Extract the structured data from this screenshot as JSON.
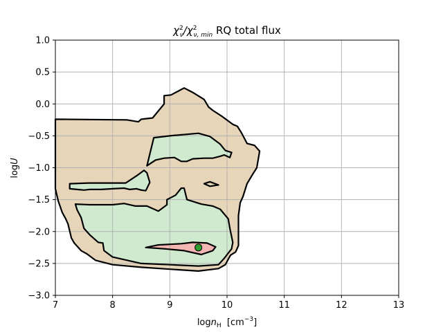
{
  "chart_data": {
    "type": "contour",
    "title_parts": [
      "χ",
      "2",
      "ν",
      "/χ",
      "2",
      "ν, min",
      " RQ total flux"
    ],
    "xlabel_parts": [
      "log",
      "n",
      "H",
      "  [cm",
      "−3",
      "]"
    ],
    "ylabel_parts": [
      "log",
      "U"
    ],
    "xlim": [
      7,
      13
    ],
    "ylim": [
      -3.0,
      1.0
    ],
    "xticks": [
      7,
      8,
      9,
      10,
      11,
      12,
      13
    ],
    "xtick_labels": [
      "7",
      "8",
      "9",
      "10",
      "11",
      "12",
      "13"
    ],
    "yticks": [
      1.0,
      0.5,
      0.0,
      -0.5,
      -1.0,
      -1.5,
      -2.0,
      -2.5,
      -3.0
    ],
    "ytick_labels": [
      "1.0",
      "0.5",
      "0.0",
      "−0.5",
      "−1.0",
      "−1.5",
      "−2.0",
      "−2.5",
      "−3.0"
    ],
    "grid": true,
    "colors": {
      "outer": "#e6d5b8",
      "middle": "#d0ead0",
      "inner": "#f4b6b2",
      "outline": "#000000",
      "minimum_marker": "#2e9e2e",
      "grid": "#b0b0b0"
    },
    "regions": [
      {
        "level": "outer",
        "points": [
          [
            7.0,
            -0.24
          ],
          [
            8.25,
            -0.25
          ],
          [
            8.45,
            -0.28
          ],
          [
            8.5,
            -0.24
          ],
          [
            8.7,
            -0.22
          ],
          [
            8.9,
            0.0
          ],
          [
            8.9,
            0.13
          ],
          [
            9.02,
            0.14
          ],
          [
            9.25,
            0.25
          ],
          [
            9.4,
            0.18
          ],
          [
            9.6,
            0.07
          ],
          [
            9.68,
            -0.05
          ],
          [
            9.75,
            -0.1
          ],
          [
            9.92,
            -0.2
          ],
          [
            10.1,
            -0.32
          ],
          [
            10.18,
            -0.35
          ],
          [
            10.25,
            -0.45
          ],
          [
            10.35,
            -0.62
          ],
          [
            10.48,
            -0.65
          ],
          [
            10.57,
            -0.74
          ],
          [
            10.52,
            -1.0
          ],
          [
            10.45,
            -1.1
          ],
          [
            10.35,
            -1.25
          ],
          [
            10.28,
            -1.45
          ],
          [
            10.23,
            -1.55
          ],
          [
            10.2,
            -1.75
          ],
          [
            10.2,
            -2.22
          ],
          [
            10.15,
            -2.32
          ],
          [
            10.06,
            -2.37
          ],
          [
            9.97,
            -2.52
          ],
          [
            9.85,
            -2.58
          ],
          [
            9.5,
            -2.62
          ],
          [
            9.0,
            -2.59
          ],
          [
            8.5,
            -2.56
          ],
          [
            8.0,
            -2.52
          ],
          [
            7.7,
            -2.45
          ],
          [
            7.55,
            -2.35
          ],
          [
            7.45,
            -2.3
          ],
          [
            7.33,
            -2.18
          ],
          [
            7.28,
            -2.1
          ],
          [
            7.22,
            -1.88
          ],
          [
            7.18,
            -1.8
          ],
          [
            7.12,
            -1.7
          ],
          [
            7.05,
            -1.52
          ],
          [
            7.0,
            -1.33
          ]
        ]
      },
      {
        "level": "middle",
        "points": [
          [
            8.72,
            -0.53
          ],
          [
            9.0,
            -0.5
          ],
          [
            9.5,
            -0.46
          ],
          [
            9.7,
            -0.51
          ],
          [
            9.88,
            -0.63
          ],
          [
            9.97,
            -0.73
          ],
          [
            10.08,
            -0.76
          ],
          [
            10.05,
            -0.84
          ],
          [
            9.95,
            -0.8
          ],
          [
            9.88,
            -0.82
          ],
          [
            9.75,
            -0.85
          ],
          [
            9.6,
            -0.85
          ],
          [
            9.4,
            -0.86
          ],
          [
            9.3,
            -0.9
          ],
          [
            9.2,
            -0.9
          ],
          [
            9.08,
            -0.84
          ],
          [
            8.9,
            -0.85
          ],
          [
            8.75,
            -0.88
          ],
          [
            8.6,
            -0.97
          ]
        ]
      },
      {
        "level": "middle",
        "points": [
          [
            7.25,
            -1.25
          ],
          [
            7.6,
            -1.24
          ],
          [
            7.9,
            -1.24
          ],
          [
            8.23,
            -1.24
          ],
          [
            8.43,
            -1.12
          ],
          [
            8.55,
            -1.04
          ],
          [
            8.6,
            -1.08
          ],
          [
            8.65,
            -1.23
          ],
          [
            8.58,
            -1.36
          ],
          [
            8.5,
            -1.35
          ],
          [
            8.42,
            -1.33
          ],
          [
            8.3,
            -1.34
          ],
          [
            8.2,
            -1.32
          ],
          [
            8.0,
            -1.33
          ],
          [
            7.8,
            -1.34
          ],
          [
            7.6,
            -1.34
          ],
          [
            7.5,
            -1.35
          ],
          [
            7.38,
            -1.34
          ],
          [
            7.25,
            -1.33
          ]
        ]
      },
      {
        "level": "middle",
        "points": [
          [
            7.35,
            -1.57
          ],
          [
            7.6,
            -1.58
          ],
          [
            8.0,
            -1.58
          ],
          [
            8.2,
            -1.56
          ],
          [
            8.4,
            -1.6
          ],
          [
            8.6,
            -1.6
          ],
          [
            8.8,
            -1.68
          ],
          [
            8.95,
            -1.58
          ],
          [
            8.95,
            -1.5
          ],
          [
            9.1,
            -1.43
          ],
          [
            9.2,
            -1.32
          ],
          [
            9.25,
            -1.32
          ],
          [
            9.3,
            -1.5
          ],
          [
            9.55,
            -1.57
          ],
          [
            9.75,
            -1.6
          ],
          [
            9.88,
            -1.65
          ],
          [
            10.02,
            -1.8
          ],
          [
            10.05,
            -1.95
          ],
          [
            10.1,
            -2.17
          ],
          [
            10.08,
            -2.27
          ],
          [
            9.95,
            -2.42
          ],
          [
            9.85,
            -2.52
          ],
          [
            9.5,
            -2.54
          ],
          [
            9.0,
            -2.52
          ],
          [
            8.5,
            -2.5
          ],
          [
            8.0,
            -2.4
          ],
          [
            7.85,
            -2.3
          ],
          [
            7.83,
            -2.18
          ],
          [
            7.75,
            -2.17
          ],
          [
            7.6,
            -2.05
          ],
          [
            7.5,
            -1.95
          ],
          [
            7.45,
            -1.78
          ],
          [
            7.38,
            -1.66
          ]
        ]
      },
      {
        "level": "inner",
        "points": [
          [
            8.58,
            -2.25
          ],
          [
            8.8,
            -2.21
          ],
          [
            9.2,
            -2.19
          ],
          [
            9.4,
            -2.17
          ],
          [
            9.65,
            -2.18
          ],
          [
            9.8,
            -2.24
          ],
          [
            9.75,
            -2.3
          ],
          [
            9.55,
            -2.36
          ],
          [
            9.25,
            -2.3
          ],
          [
            8.9,
            -2.27
          ]
        ]
      },
      {
        "level": "outline",
        "points": [
          [
            9.6,
            -1.25
          ],
          [
            9.7,
            -1.22
          ],
          [
            9.85,
            -1.27
          ],
          [
            9.7,
            -1.29
          ]
        ]
      }
    ],
    "minimum_point": {
      "x": 9.5,
      "y": -2.25
    }
  }
}
